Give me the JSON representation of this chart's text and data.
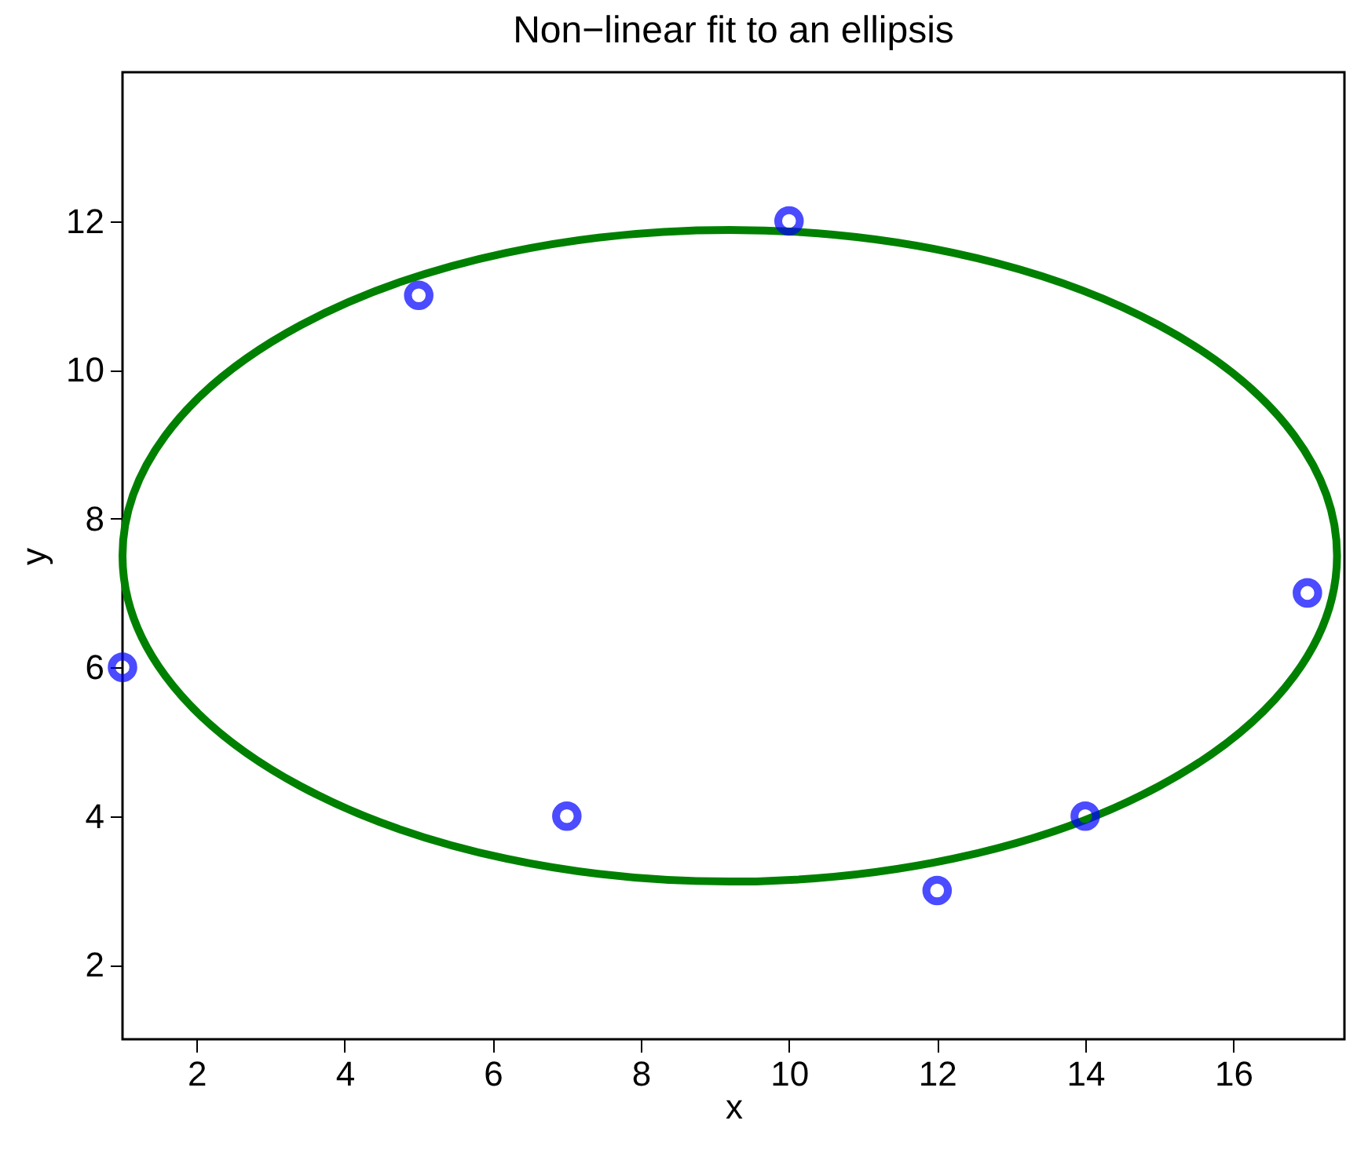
{
  "chart_data": {
    "type": "scatter",
    "title": "Non−linear fit to an ellipsis",
    "xlabel": "x",
    "ylabel": "y",
    "xlim": [
      1,
      17.5
    ],
    "ylim": [
      1,
      14
    ],
    "xticks": [
      2,
      4,
      6,
      8,
      10,
      12,
      14,
      16
    ],
    "yticks": [
      2,
      4,
      6,
      8,
      10,
      12
    ],
    "grid": false,
    "series": [
      {
        "type": "scatter",
        "marker": "circle",
        "color": "#0000ff",
        "x": [
          1,
          5,
          7,
          10,
          12,
          14,
          17
        ],
        "values": [
          6,
          11,
          4,
          12,
          3,
          4,
          7
        ]
      }
    ]
  }
}
